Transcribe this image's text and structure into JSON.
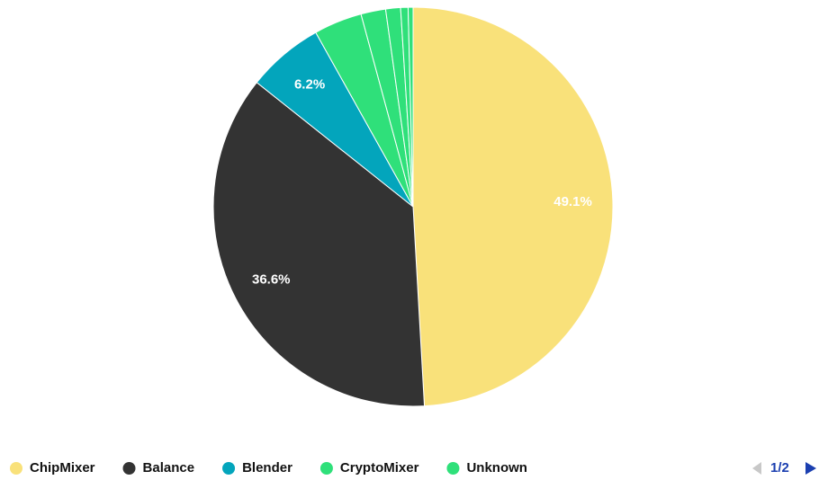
{
  "chart_data": {
    "type": "pie",
    "categories": [
      "ChipMixer",
      "Balance",
      "Blender",
      "CryptoMixer",
      "Unknown",
      null,
      null,
      null
    ],
    "values": [
      49.1,
      36.6,
      6.2,
      3.9,
      2.0,
      1.2,
      0.6,
      0.4
    ],
    "value_labels": [
      "49.1%",
      "36.6%",
      "6.2%",
      null,
      null,
      null,
      null,
      null
    ],
    "colors": [
      "#f9e17a",
      "#333333",
      "#03a5bc",
      "#2fe07a",
      "#2fe07a",
      "#2fe07a",
      "#2fe07a",
      "#2fe07a"
    ],
    "legend": "bottom",
    "legend_page": "1/2"
  }
}
